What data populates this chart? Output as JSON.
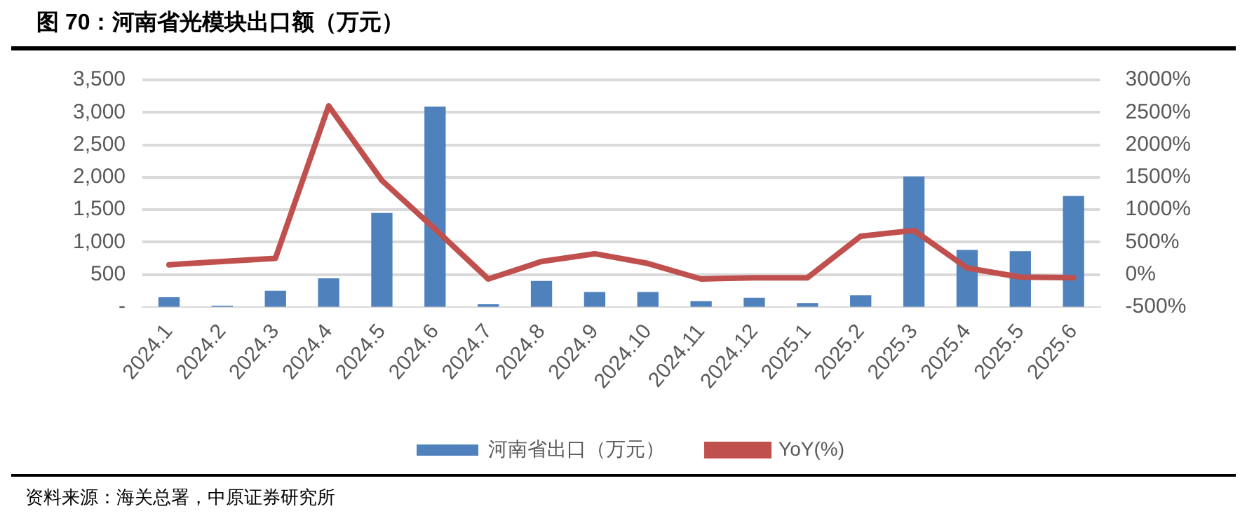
{
  "chart_data": {
    "type": "bar",
    "title": "图 70：河南省光模块出口额（万元）",
    "categories": [
      "2024.1",
      "2024.2",
      "2024.3",
      "2024.4",
      "2024.5",
      "2024.6",
      "2024.7",
      "2024.8",
      "2024.9",
      "2024.10",
      "2024.11",
      "2024.12",
      "2025.1",
      "2025.2",
      "2025.3",
      "2025.4",
      "2025.5",
      "2025.6"
    ],
    "series": [
      {
        "name": "河南省出口（万元）",
        "color": "#4f81bd",
        "values": [
          150,
          20,
          250,
          440,
          1450,
          3090,
          40,
          400,
          230,
          230,
          90,
          140,
          60,
          180,
          2010,
          880,
          860,
          1710
        ]
      },
      {
        "name": "YoY(%)",
        "type": "line",
        "axis": "y2",
        "color": "#c0504d",
        "values": [
          150,
          200,
          250,
          2600,
          1450,
          700,
          -70,
          200,
          320,
          170,
          -70,
          -50,
          -50,
          590,
          680,
          100,
          -40,
          -50
        ]
      }
    ],
    "ylim": [
      0,
      3500
    ],
    "yticks": [
      {
        "value": 0,
        "label": "-"
      },
      500,
      {
        "value": 1000,
        "label": "1,000"
      },
      {
        "value": 1500,
        "label": "1,500"
      },
      {
        "value": 2000,
        "label": "2,000"
      },
      {
        "value": 2500,
        "label": "2,500"
      },
      {
        "value": 3000,
        "label": "3,000"
      },
      {
        "value": 3500,
        "label": "3,500"
      }
    ],
    "y2lim": [
      -500,
      3000
    ],
    "y2ticks": [
      {
        "value": -500,
        "label": "-500%"
      },
      {
        "value": 0,
        "label": "0%"
      },
      {
        "value": 500,
        "label": "500%"
      },
      {
        "value": 1000,
        "label": "1000%"
      },
      {
        "value": 1500,
        "label": "1500%"
      },
      {
        "value": 2000,
        "label": "2000%"
      },
      {
        "value": 2500,
        "label": "2500%"
      },
      {
        "value": 3000,
        "label": "3000%"
      }
    ],
    "grid": "y",
    "legend": "bottom",
    "marker": "none",
    "annotations": [
      "资料来源：海关总署，中原证券研究所"
    ]
  }
}
